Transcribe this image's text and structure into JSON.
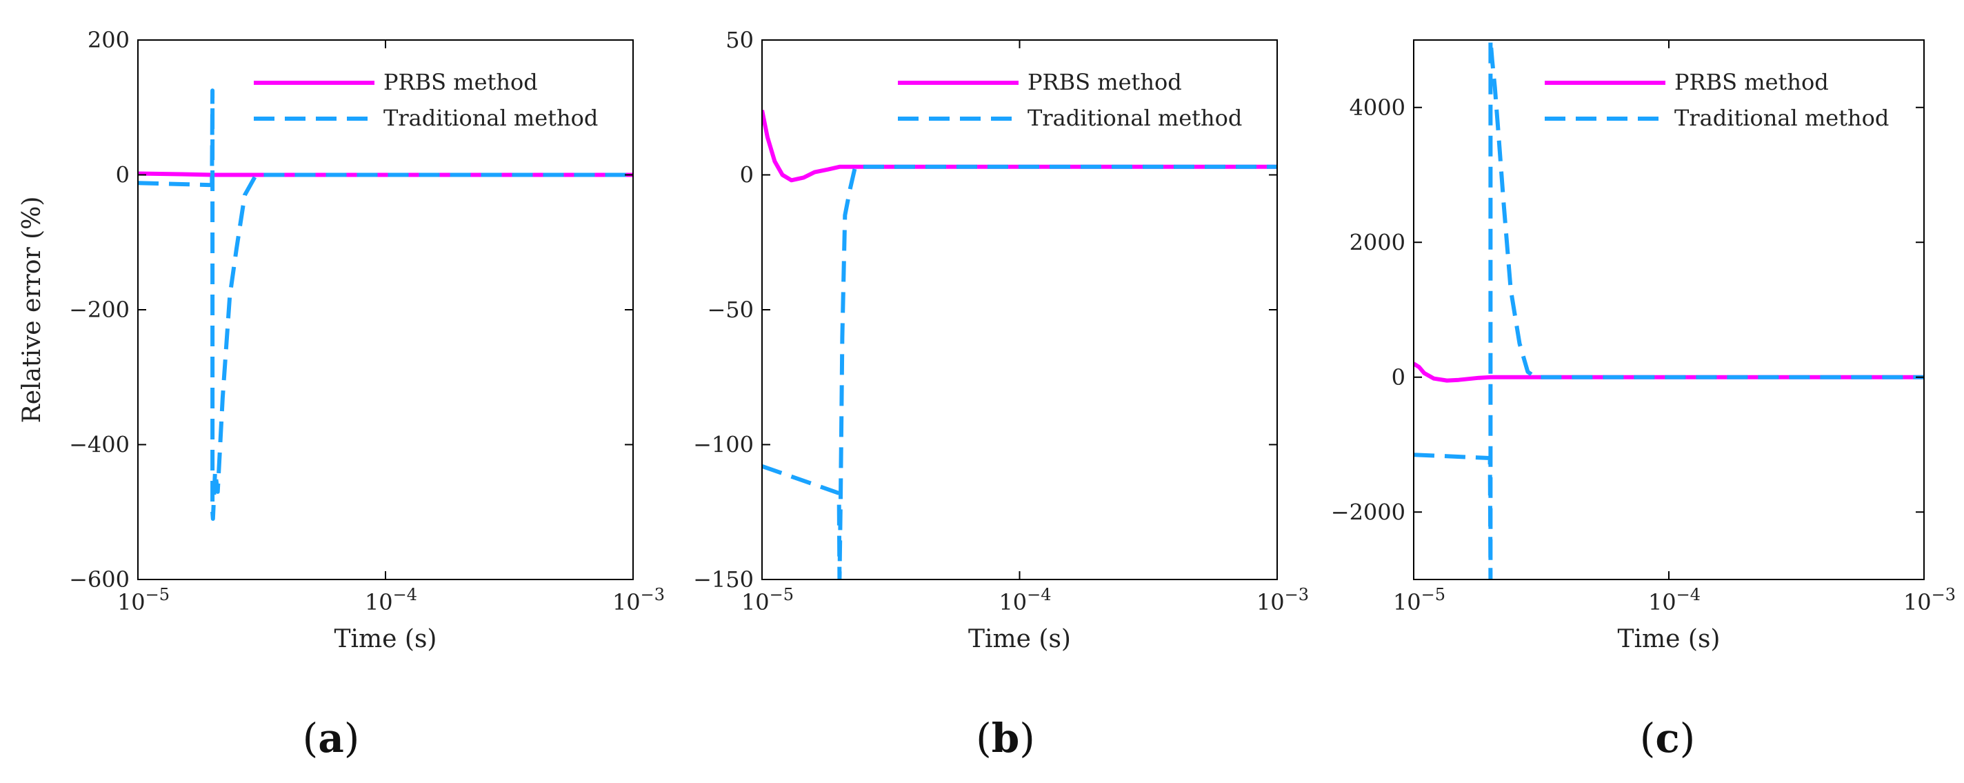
{
  "colors": {
    "prbs": "#ff00ff",
    "traditional": "#1aa3ff"
  },
  "legend": {
    "prbs": "PRBS method",
    "traditional": "Traditional method"
  },
  "chart_data": [
    {
      "type": "line",
      "panel_label": {
        "open": "(",
        "letter": "a",
        "close": ")"
      },
      "xlabel": "Time (s)",
      "ylabel": "Relative error (%)",
      "xscale": "log",
      "xlim": [
        1e-05,
        0.001
      ],
      "ylim": [
        -600,
        200
      ],
      "yticks": [
        -600,
        -400,
        -200,
        0,
        200
      ],
      "ytick_labels": [
        "−600",
        "−400",
        "−200",
        "0",
        "200"
      ],
      "xticks": [
        1e-05,
        0.0001,
        0.001
      ],
      "xtick_labels": [
        {
          "base": "10",
          "exp": "−5"
        },
        {
          "base": "10",
          "exp": "−4"
        },
        {
          "base": "10",
          "exp": "−3"
        }
      ],
      "legend_position": "top-right",
      "series": [
        {
          "name": "PRBS method",
          "style": "solid",
          "x": [
            1e-05,
            1.5e-05,
            2e-05,
            3e-05,
            0.0001,
            0.001
          ],
          "y": [
            2,
            1,
            0,
            0,
            0,
            0
          ]
        },
        {
          "name": "Traditional method",
          "style": "dashed",
          "x": [
            1e-05,
            1.99e-05,
            2e-05,
            2e-05,
            2.01e-05,
            2.05e-05,
            2.1e-05,
            2.2e-05,
            2.35e-05,
            2.5e-05,
            2.7e-05,
            3e-05,
            0.0001,
            0.001
          ],
          "y": [
            -12,
            -15,
            125,
            -500,
            -510,
            -440,
            -470,
            -330,
            -180,
            -110,
            -30,
            0,
            0,
            0
          ]
        }
      ]
    },
    {
      "type": "line",
      "panel_label": {
        "open": "(",
        "letter": "b",
        "close": ")"
      },
      "xlabel": "Time (s)",
      "ylabel": "",
      "xscale": "log",
      "xlim": [
        1e-05,
        0.001
      ],
      "ylim": [
        -150,
        50
      ],
      "yticks": [
        -150,
        -100,
        -50,
        0,
        50
      ],
      "ytick_labels": [
        "−150",
        "−100",
        "−50",
        "0",
        "50"
      ],
      "xticks": [
        1e-05,
        0.0001,
        0.001
      ],
      "xtick_labels": [
        {
          "base": "10",
          "exp": "−5"
        },
        {
          "base": "10",
          "exp": "−4"
        },
        {
          "base": "10",
          "exp": "−3"
        }
      ],
      "legend_position": "top-right",
      "series": [
        {
          "name": "PRBS method",
          "style": "solid",
          "x": [
            1e-05,
            1.05e-05,
            1.12e-05,
            1.2e-05,
            1.3e-05,
            1.45e-05,
            1.6e-05,
            1.8e-05,
            2e-05,
            0.0001,
            0.001
          ],
          "y": [
            24,
            14,
            5,
            0,
            -2,
            -1,
            1,
            2,
            3,
            3,
            3
          ]
        },
        {
          "name": "Traditional method",
          "style": "dashed",
          "x": [
            1e-05,
            1.99e-05,
            2e-05,
            2.02e-05,
            2.05e-05,
            2.1e-05,
            2.2e-05,
            2.3e-05,
            0.0001,
            0.001
          ],
          "y": [
            -108,
            -118,
            -150,
            -120,
            -60,
            -15,
            -5,
            3,
            3,
            3
          ]
        }
      ]
    },
    {
      "type": "line",
      "panel_label": {
        "open": "(",
        "letter": "c",
        "close": ")"
      },
      "xlabel": "Time (s)",
      "ylabel": "",
      "xscale": "log",
      "xlim": [
        1e-05,
        0.001
      ],
      "ylim": [
        -3000,
        5000
      ],
      "yticks": [
        -2000,
        0,
        2000,
        4000
      ],
      "ytick_labels": [
        "−2000",
        "0",
        "2000",
        "4000"
      ],
      "xticks": [
        1e-05,
        0.0001,
        0.001
      ],
      "xtick_labels": [
        {
          "base": "10",
          "exp": "−5"
        },
        {
          "base": "10",
          "exp": "−4"
        },
        {
          "base": "10",
          "exp": "−3"
        }
      ],
      "legend_position": "top-right",
      "series": [
        {
          "name": "PRBS method",
          "style": "solid",
          "x": [
            1e-05,
            1.05e-05,
            1.1e-05,
            1.2e-05,
            1.35e-05,
            1.5e-05,
            1.8e-05,
            2e-05,
            0.0001,
            0.001
          ],
          "y": [
            200,
            150,
            60,
            -20,
            -50,
            -40,
            -10,
            0,
            0,
            0
          ]
        },
        {
          "name": "Traditional method",
          "style": "dashed",
          "x": [
            1e-05,
            1.99e-05,
            2e-05,
            2e-05,
            2.03e-05,
            2.08e-05,
            2.15e-05,
            2.25e-05,
            2.4e-05,
            2.6e-05,
            2.8e-05,
            3e-05,
            0.0001,
            0.001
          ],
          "y": [
            -1150,
            -1200,
            -3000,
            5000,
            4700,
            4300,
            3600,
            2600,
            1300,
            500,
            80,
            0,
            0,
            0
          ]
        }
      ]
    }
  ]
}
